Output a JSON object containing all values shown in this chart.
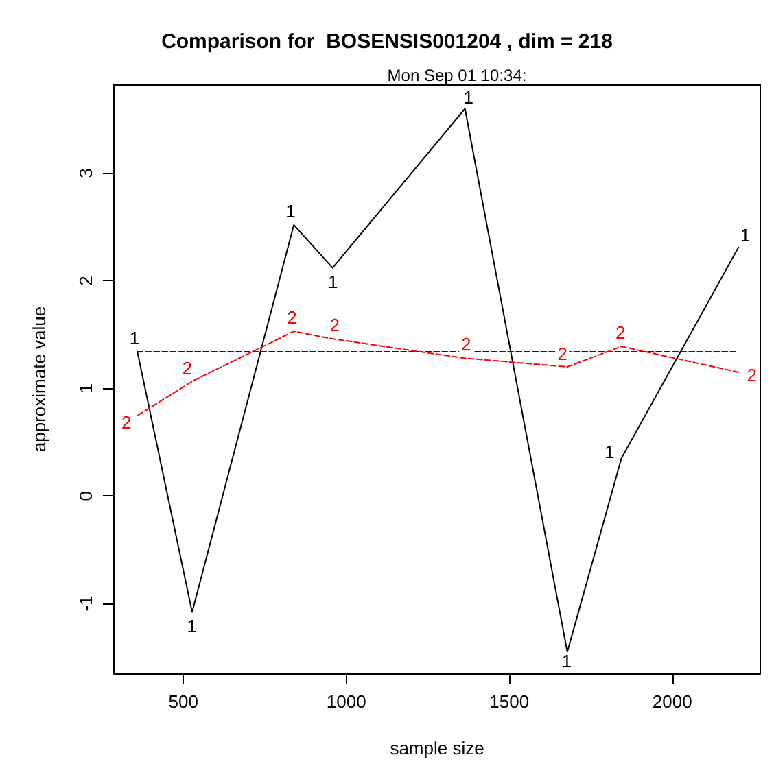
{
  "chart_data": {
    "type": "line",
    "title": "Comparison for  BOSENSIS001204 , dim = 218",
    "subtitle": "Mon Sep 01 10:34:",
    "xlabel": "sample size",
    "ylabel": "approximate value",
    "xlim": [
      287,
      2270
    ],
    "xticks": [
      500,
      1000,
      1500,
      2000
    ],
    "ylim": [
      -1.65,
      3.82
    ],
    "yticks": [
      -1,
      0,
      1,
      2,
      3
    ],
    "grid": false,
    "legend": false,
    "series": [
      {
        "name": "1",
        "color": "#000000",
        "line_style": "solid",
        "marker": "none",
        "x": [
          359,
          527,
          839,
          958,
          1364,
          1678,
          1844,
          2203
        ],
        "values": [
          1.34,
          -1.08,
          2.52,
          2.12,
          3.6,
          -1.45,
          0.35,
          2.31
        ]
      },
      {
        "name": "2",
        "color": "#ff0000",
        "line_style": "dashed",
        "marker": "none",
        "x": [
          361,
          530,
          839,
          958,
          1364,
          1678,
          1844,
          2203
        ],
        "values": [
          0.75,
          1.07,
          1.53,
          1.46,
          1.28,
          1.2,
          1.39,
          1.15
        ]
      },
      {
        "color": "#0000ff",
        "line_style": "dashed",
        "x": [
          359,
          2203
        ],
        "values": [
          1.34,
          1.34
        ]
      }
    ]
  }
}
